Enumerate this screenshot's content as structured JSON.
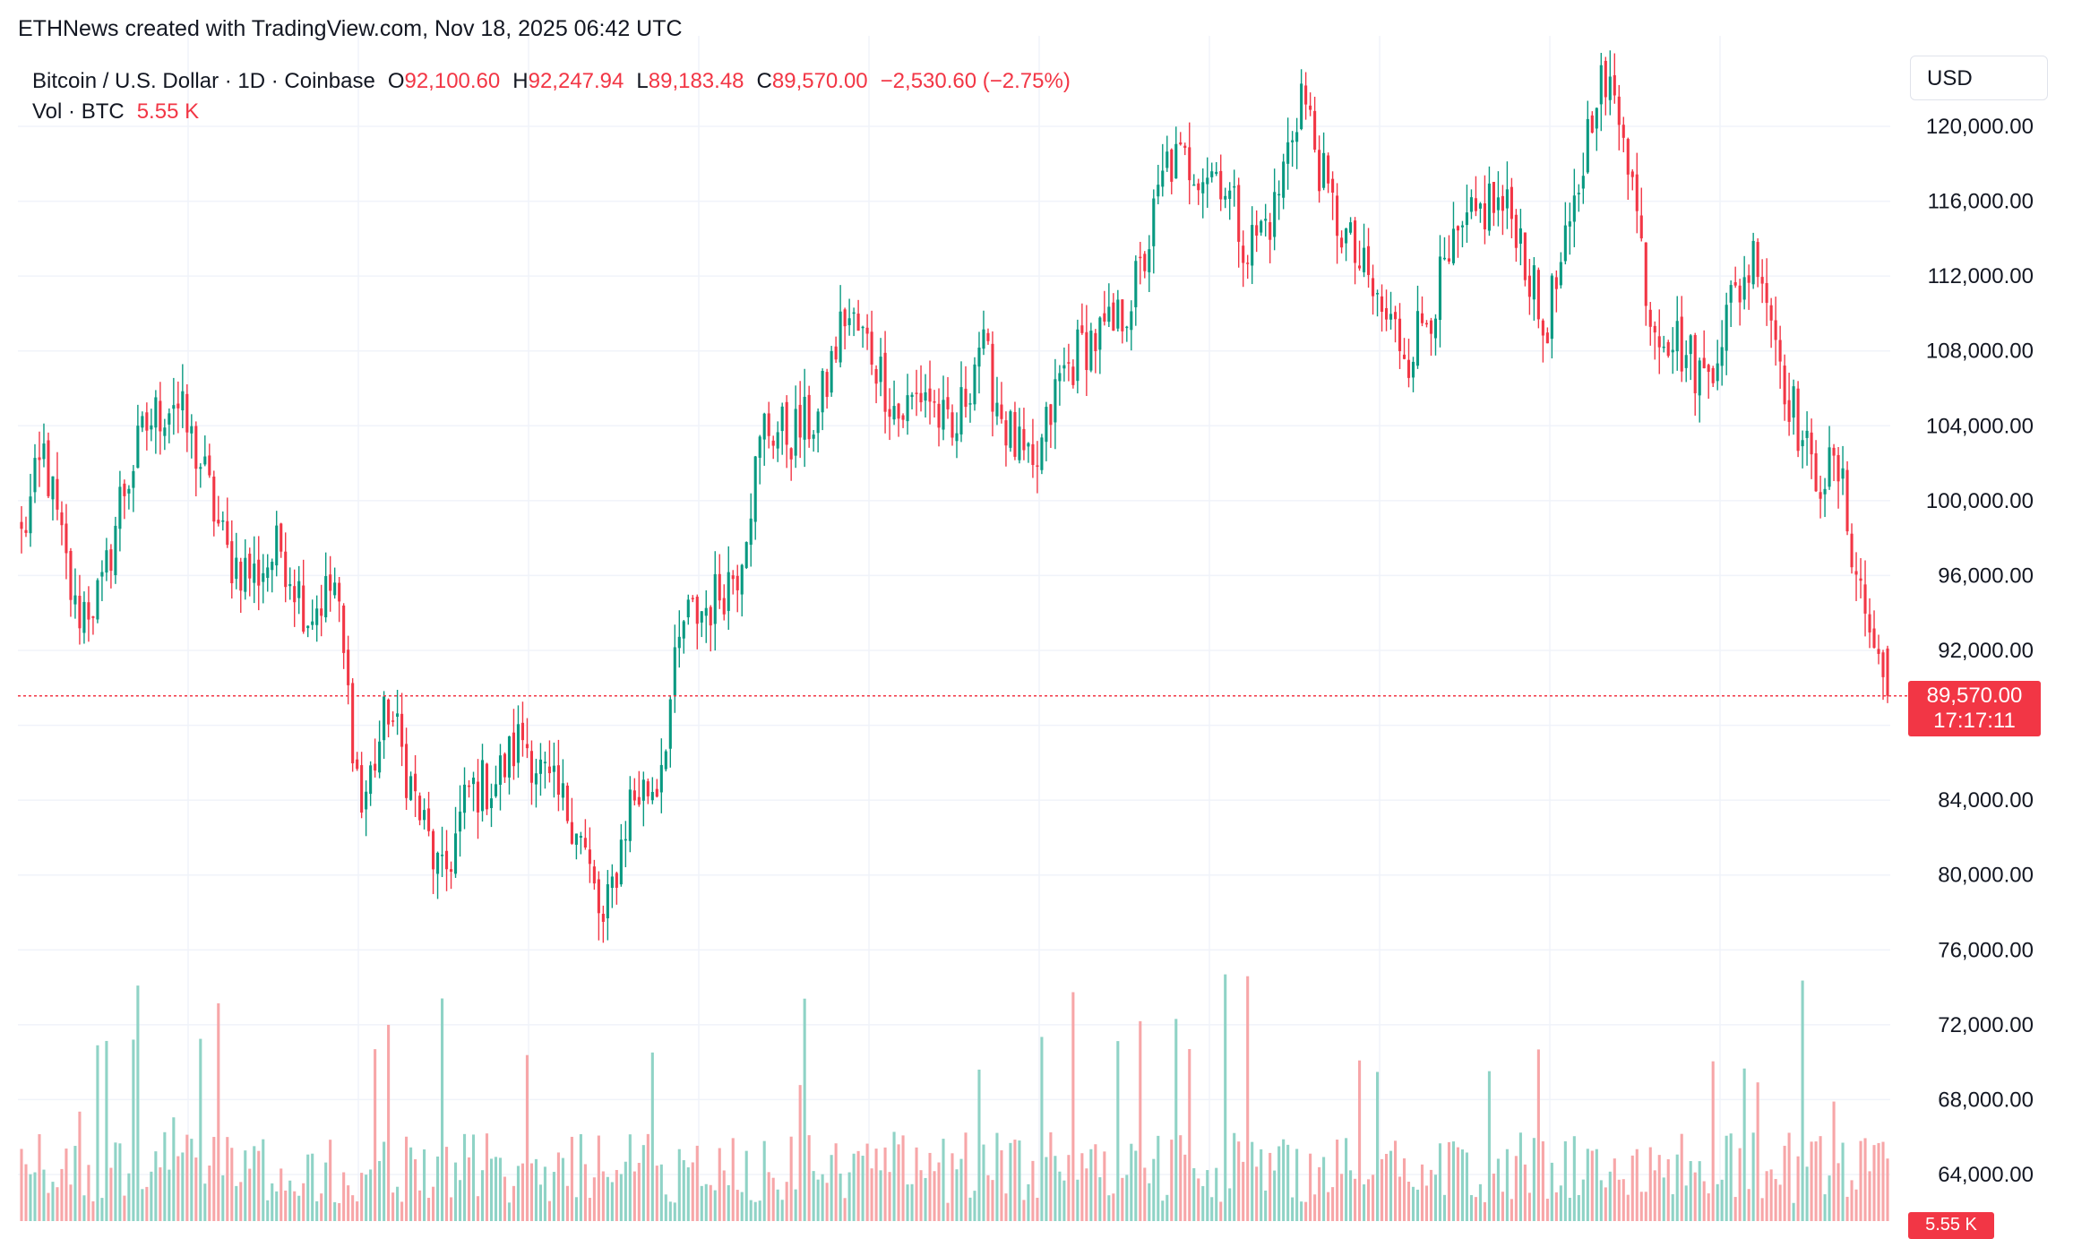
{
  "attribution": "ETHNews created with TradingView.com, Nov 18, 2025 06:42 UTC",
  "currency_button": "USD",
  "legend": {
    "symbol": "Bitcoin / U.S. Dollar · 1D · Coinbase",
    "open_key": "O",
    "open": "92,100.60",
    "high_key": "H",
    "high": "92,247.94",
    "low_key": "L",
    "low": "89,183.48",
    "close_key": "C",
    "close": "89,570.00",
    "change": "−2,530.60 (−2.75%)",
    "volume_label": "Vol · BTC",
    "volume_value": "5.55 K"
  },
  "last_price_tag": {
    "price": "89,570.00",
    "countdown": "17:17:11"
  },
  "volume_tag": "5.55 K",
  "colors": {
    "up": "#089981",
    "down": "#f23645",
    "vol_up": "#8fd3c6",
    "vol_down": "#f7a6a8",
    "grid": "#f0f3fa"
  },
  "chart_data": {
    "type": "candlestick",
    "y_axis_ticks": [
      "64,000.00",
      "68,000.00",
      "72,000.00",
      "76,000.00",
      "80,000.00",
      "84,000.00",
      "92,000.00",
      "96,000.00",
      "100,000.00",
      "104,000.00",
      "108,000.00",
      "112,000.00",
      "116,000.00",
      "120,000.00"
    ],
    "y_tick_values": [
      64000,
      68000,
      72000,
      76000,
      80000,
      84000,
      92000,
      96000,
      100000,
      104000,
      108000,
      112000,
      116000,
      120000
    ],
    "ylim": [
      60500,
      124500
    ],
    "last_price": 89570,
    "anchors": [
      [
        0,
        98000
      ],
      [
        5,
        102500
      ],
      [
        12,
        94000
      ],
      [
        18,
        95000
      ],
      [
        22,
        100000
      ],
      [
        28,
        104000
      ],
      [
        34,
        105500
      ],
      [
        40,
        102000
      ],
      [
        46,
        97000
      ],
      [
        52,
        96000
      ],
      [
        58,
        97500
      ],
      [
        64,
        94000
      ],
      [
        70,
        95500
      ],
      [
        76,
        83500
      ],
      [
        82,
        89000
      ],
      [
        88,
        84000
      ],
      [
        94,
        79500
      ],
      [
        100,
        84500
      ],
      [
        106,
        85000
      ],
      [
        112,
        87500
      ],
      [
        118,
        84500
      ],
      [
        124,
        83000
      ],
      [
        130,
        77000
      ],
      [
        136,
        84000
      ],
      [
        142,
        85000
      ],
      [
        148,
        93500
      ],
      [
        154,
        94500
      ],
      [
        160,
        96500
      ],
      [
        166,
        104000
      ],
      [
        172,
        103500
      ],
      [
        178,
        104500
      ],
      [
        184,
        110000
      ],
      [
        190,
        108000
      ],
      [
        196,
        104500
      ],
      [
        202,
        106000
      ],
      [
        208,
        103000
      ],
      [
        214,
        108500
      ],
      [
        220,
        104000
      ],
      [
        226,
        101000
      ],
      [
        232,
        106500
      ],
      [
        238,
        108500
      ],
      [
        244,
        109000
      ],
      [
        250,
        112000
      ],
      [
        256,
        118000
      ],
      [
        262,
        118000
      ],
      [
        268,
        117500
      ],
      [
        274,
        113500
      ],
      [
        280,
        115500
      ],
      [
        286,
        122000
      ],
      [
        292,
        116000
      ],
      [
        298,
        113000
      ],
      [
        304,
        110000
      ],
      [
        310,
        108000
      ],
      [
        316,
        111000
      ],
      [
        322,
        114000
      ],
      [
        328,
        116000
      ],
      [
        334,
        115000
      ],
      [
        340,
        109000
      ],
      [
        346,
        114000
      ],
      [
        352,
        122500
      ],
      [
        358,
        120500
      ],
      [
        364,
        110000
      ],
      [
        370,
        108500
      ],
      [
        376,
        106500
      ],
      [
        382,
        110500
      ],
      [
        388,
        113500
      ],
      [
        394,
        106500
      ],
      [
        400,
        101500
      ],
      [
        406,
        101500
      ],
      [
        412,
        94000
      ],
      [
        417,
        89570
      ]
    ],
    "candle_count": 418,
    "volume_heights": "relative bars along bottom of chart, taller around early Apr, mid-Jul, mid-Oct"
  }
}
